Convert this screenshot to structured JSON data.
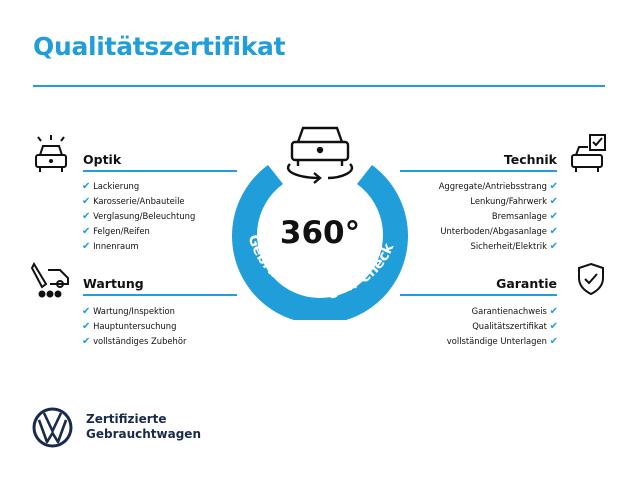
{
  "title": "Qualitätszertifikat",
  "center": {
    "value": "360°",
    "ring_text": "Gebrauchtwagen-Check"
  },
  "sections": {
    "optik": {
      "title": "Optik",
      "icon": "car-lights-icon",
      "items": [
        "Lackierung",
        "Karosserie/Anbauteile",
        "Verglasung/Beleuchtung",
        "Felgen/Reifen",
        "Innenraum"
      ]
    },
    "wartung": {
      "title": "Wartung",
      "icon": "service-tools-icon",
      "items": [
        "Wartung/Inspektion",
        "Hauptuntersuchung",
        "vollständiges Zubehör"
      ]
    },
    "technik": {
      "title": "Technik",
      "icon": "car-checklist-icon",
      "items": [
        "Aggregate/Antriebsstrang",
        "Lenkung/Fahrwerk",
        "Bremsanlage",
        "Unterboden/Abgasanlage",
        "Sicherheit/Elektrik"
      ]
    },
    "garantie": {
      "title": "Garantie",
      "icon": "shield-check-icon",
      "items": [
        "Garantienachweis",
        "Qualitätszertifikat",
        "vollständige Unterlagen"
      ]
    }
  },
  "brand": {
    "line1": "Zertifizierte",
    "line2": "Gebrauchtwagen",
    "logo": "VW"
  },
  "colors": {
    "accent": "#1f9ed9",
    "text": "#111111",
    "brand": "#1a2a4a"
  }
}
